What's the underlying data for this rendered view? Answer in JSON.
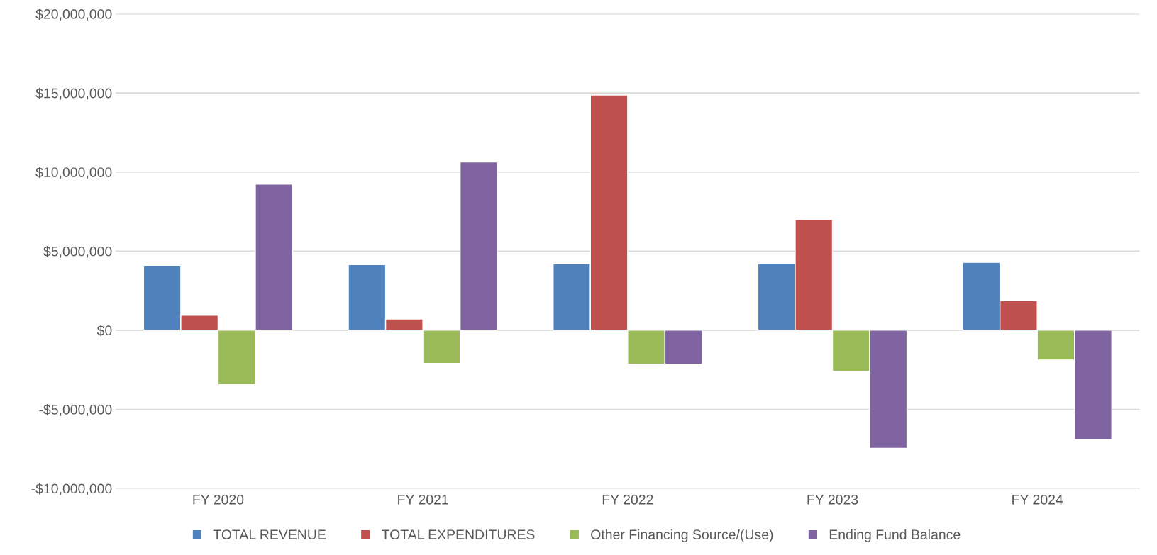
{
  "chart_data": {
    "type": "bar",
    "categories": [
      "FY 2020",
      "FY 2021",
      "FY 2022",
      "FY 2023",
      "FY 2024"
    ],
    "series": [
      {
        "name": "TOTAL REVENUE",
        "color": "#4f81bd",
        "values": [
          4100000,
          4150000,
          4200000,
          4240000,
          4290000
        ]
      },
      {
        "name": "TOTAL EXPENDITURES",
        "color": "#c0504d",
        "values": [
          940000,
          710000,
          14870000,
          7000000,
          1880000
        ]
      },
      {
        "name": "Other Financing Source/(Use)",
        "color": "#9bbb59",
        "values": [
          -3440000,
          -2100000,
          -2140000,
          -2590000,
          -1880000
        ]
      },
      {
        "name": "Ending Fund Balance",
        "color": "#8064a2",
        "values": [
          9240000,
          10630000,
          -2140000,
          -7460000,
          -6920000
        ]
      }
    ],
    "ylim": [
      -10000000,
      20000000
    ],
    "yticks": [
      {
        "value": -10000000,
        "label": "-$10,000,000"
      },
      {
        "value": -5000000,
        "label": "-$5,000,000"
      },
      {
        "value": 0,
        "label": "$0"
      },
      {
        "value": 5000000,
        "label": "$5,000,000"
      },
      {
        "value": 10000000,
        "label": "$10,000,000"
      },
      {
        "value": 15000000,
        "label": "$15,000,000"
      },
      {
        "value": 20000000,
        "label": "$20,000,000"
      }
    ],
    "grid": "y",
    "legend": "bottom"
  }
}
